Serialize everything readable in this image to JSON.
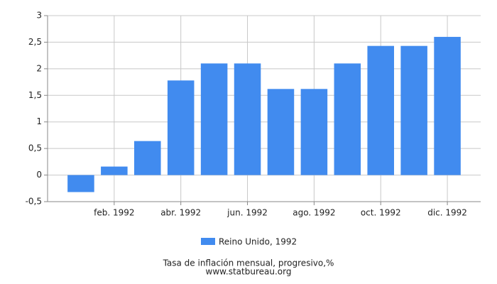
{
  "chart_data": {
    "type": "bar",
    "categories": [
      null,
      "feb. 1992",
      null,
      "abr. 1992",
      null,
      "jun. 1992",
      null,
      "ago. 1992",
      null,
      "oct. 1992",
      null,
      "dic. 1992"
    ],
    "series": [
      {
        "name": "Reino Unido, 1992",
        "color": "#418bef",
        "values": [
          -0.32,
          0.16,
          0.64,
          1.78,
          2.1,
          2.1,
          1.62,
          1.62,
          2.1,
          2.43,
          2.43,
          2.6
        ]
      }
    ],
    "ylim": [
      -0.5,
      3
    ],
    "yticks": [
      {
        "value": -0.5,
        "label": "-0,5"
      },
      0,
      {
        "value": 0.5,
        "label": "0,5"
      },
      1,
      {
        "value": 1.5,
        "label": "1,5"
      },
      2,
      {
        "value": 2.5,
        "label": "2,5"
      },
      3
    ],
    "grid": true,
    "title": "Tasa de inflación mensual, progresivo,%",
    "subtitle": "www.statbureau.org"
  }
}
